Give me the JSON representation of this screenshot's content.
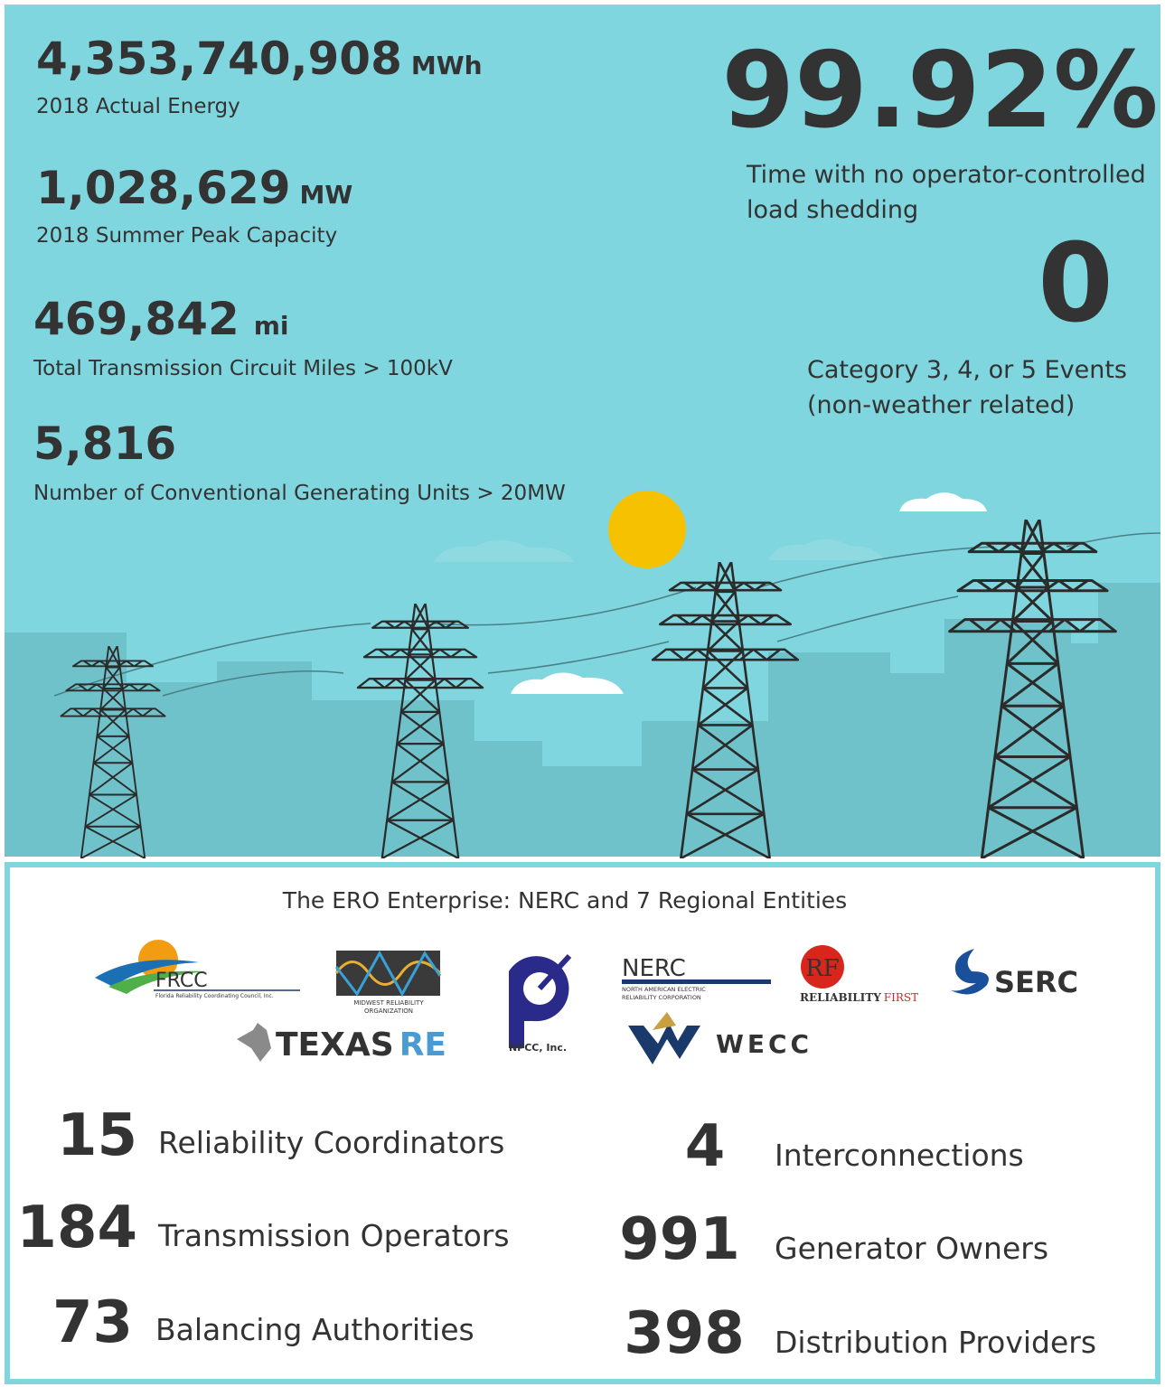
{
  "top_stats": [
    {
      "value": "4,353,740,908",
      "unit": "MWh",
      "label": "2018 Actual Energy"
    },
    {
      "value": "1,028,629",
      "unit": "MW",
      "label": "2018 Summer Peak Capacity"
    },
    {
      "value": "469,842",
      "unit": "mi",
      "label": "Total Transmission Circuit Miles > 100kV"
    },
    {
      "value": "5,816",
      "label": "Number of Conventional Generating Units > 20MW"
    }
  ],
  "highlights": [
    {
      "value": "99.92%",
      "label_lines": [
        "Time with no operator-controlled",
        "load shedding"
      ]
    },
    {
      "value": "0",
      "label_lines": [
        "Category 3, 4, or 5 Events",
        "(non-weather related)"
      ]
    }
  ],
  "ero": {
    "title": "The ERO Enterprise: NERC and 7 Regional Entities",
    "logos": {
      "frcc": {
        "name": "FRCC",
        "subtitle": "Florida Reliability Coordinating Council, Inc."
      },
      "mro": {
        "lines": [
          "MIDWEST RELIABILITY",
          "ORGANIZATION"
        ]
      },
      "texas_re": {
        "name": "TEXAS",
        "suffix": "RE"
      },
      "npcc": {
        "name": "NPCC, Inc."
      },
      "nerc": {
        "name": "NERC",
        "lines": [
          "NORTH AMERICAN ELECTRIC",
          "RELIABILITY CORPORATION"
        ]
      },
      "rf": {
        "mark": "RF",
        "name": "RELIABILITY",
        "suffix": "FIRST"
      },
      "serc": {
        "name": "SERC"
      },
      "wecc": {
        "name": "WECC"
      }
    },
    "counts": [
      {
        "value": "15",
        "label": "Reliability Coordinators"
      },
      {
        "value": "184",
        "label": "Transmission Operators"
      },
      {
        "value": "73",
        "label": "Balancing Authorities"
      },
      {
        "value": "4",
        "label": "Interconnections"
      },
      {
        "value": "991",
        "label": "Generator Owners"
      },
      {
        "value": "398",
        "label": "Distribution Providers"
      }
    ]
  }
}
